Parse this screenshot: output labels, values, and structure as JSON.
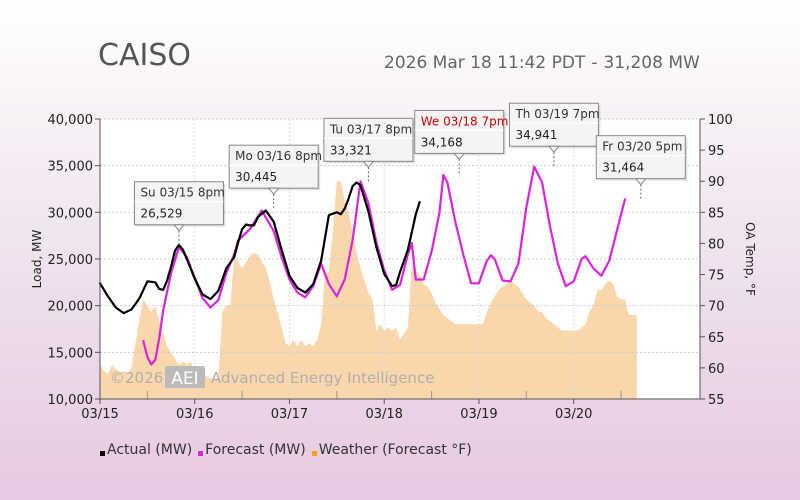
{
  "header": {
    "title": "CAISO",
    "timestamp": "2026 Mar 18 11:42 PDT",
    "separator": "-",
    "current_load": "31,208 MW"
  },
  "watermark": {
    "copyright": "©2026",
    "logo": "AEI",
    "company": "Advanced Energy Intelligence"
  },
  "chart_data": {
    "type": "line",
    "title": "",
    "xlabel": "",
    "ylabel": "Load, MW",
    "y2label": "OA Temp, °F",
    "ylim": [
      10000,
      40000
    ],
    "y2lim": [
      55,
      100
    ],
    "xlim": [
      0,
      152
    ],
    "x_unit": "hours since 2026-03-15 00:00",
    "x_ticks": [
      {
        "x": 0,
        "label": "03/15"
      },
      {
        "x": 24,
        "label": "03/16"
      },
      {
        "x": 48,
        "label": "03/17"
      },
      {
        "x": 72,
        "label": "03/18"
      },
      {
        "x": 96,
        "label": "03/19"
      },
      {
        "x": 120,
        "label": "03/20"
      }
    ],
    "y_ticks": [
      "10,000",
      "15,000",
      "20,000",
      "25,000",
      "30,000",
      "35,000",
      "40,000"
    ],
    "y_tick_values": [
      10000,
      15000,
      20000,
      25000,
      30000,
      35000,
      40000
    ],
    "y2_ticks": [
      "55",
      "60",
      "65",
      "70",
      "75",
      "80",
      "85",
      "90",
      "95",
      "100"
    ],
    "y2_tick_values": [
      55,
      60,
      65,
      70,
      75,
      80,
      85,
      90,
      95,
      100
    ],
    "grid": true,
    "legend_position": "bottom",
    "series": [
      {
        "name": "Actual (MW)",
        "color": "#000000",
        "points": [
          [
            0,
            22400
          ],
          [
            2,
            21000
          ],
          [
            4,
            19800
          ],
          [
            6,
            19200
          ],
          [
            8,
            19600
          ],
          [
            10,
            20800
          ],
          [
            11,
            21700
          ],
          [
            12,
            22600
          ],
          [
            14,
            22500
          ],
          [
            15,
            21800
          ],
          [
            16,
            21700
          ],
          [
            17,
            22700
          ],
          [
            18,
            24200
          ],
          [
            19,
            25900
          ],
          [
            20,
            26500
          ],
          [
            21,
            26000
          ],
          [
            22,
            25000
          ],
          [
            24,
            22900
          ],
          [
            26,
            21200
          ],
          [
            28,
            20700
          ],
          [
            30,
            21600
          ],
          [
            32,
            24000
          ],
          [
            34,
            25200
          ],
          [
            35,
            26800
          ],
          [
            36,
            28200
          ],
          [
            37,
            28700
          ],
          [
            38,
            28600
          ],
          [
            39,
            28600
          ],
          [
            40,
            29500
          ],
          [
            42,
            30200
          ],
          [
            44,
            29000
          ],
          [
            46,
            26000
          ],
          [
            48,
            23200
          ],
          [
            50,
            21900
          ],
          [
            52,
            21400
          ],
          [
            54,
            22300
          ],
          [
            56,
            24800
          ],
          [
            58,
            29700
          ],
          [
            60,
            30000
          ],
          [
            61,
            29800
          ],
          [
            62,
            30400
          ],
          [
            63,
            31500
          ],
          [
            64,
            32800
          ],
          [
            65,
            33200
          ],
          [
            66,
            32900
          ],
          [
            68,
            30100
          ],
          [
            70,
            26300
          ],
          [
            72,
            23400
          ],
          [
            74,
            22100
          ],
          [
            75,
            22200
          ],
          [
            76,
            23600
          ],
          [
            78,
            26000
          ],
          [
            80,
            29800
          ],
          [
            81,
            31100
          ]
        ]
      },
      {
        "name": "Forecast (MW)",
        "color": "#dd22dd",
        "points": [
          [
            11,
            16200
          ],
          [
            12,
            14500
          ],
          [
            13,
            13700
          ],
          [
            14,
            14200
          ],
          [
            15,
            16500
          ],
          [
            16,
            19500
          ],
          [
            18,
            23500
          ],
          [
            20,
            26300
          ],
          [
            22,
            25200
          ],
          [
            24,
            23000
          ],
          [
            26,
            20800
          ],
          [
            28,
            19800
          ],
          [
            30,
            20600
          ],
          [
            32,
            23500
          ],
          [
            34,
            25500
          ],
          [
            35,
            27000
          ],
          [
            38,
            28200
          ],
          [
            41,
            30200
          ],
          [
            44,
            28000
          ],
          [
            46,
            25200
          ],
          [
            48,
            22800
          ],
          [
            50,
            21400
          ],
          [
            52,
            20900
          ],
          [
            54,
            22100
          ],
          [
            56,
            24500
          ],
          [
            58,
            22300
          ],
          [
            60,
            21000
          ],
          [
            62,
            22800
          ],
          [
            64,
            27000
          ],
          [
            66,
            33300
          ],
          [
            68,
            31000
          ],
          [
            70,
            26800
          ],
          [
            72,
            23800
          ],
          [
            74,
            21700
          ],
          [
            76,
            22200
          ],
          [
            78,
            25500
          ],
          [
            79,
            26700
          ],
          [
            80,
            22800
          ],
          [
            82,
            22800
          ],
          [
            84,
            25800
          ],
          [
            86,
            30000
          ],
          [
            87,
            34000
          ],
          [
            88,
            33200
          ],
          [
            90,
            29000
          ],
          [
            92,
            25500
          ],
          [
            94,
            22400
          ],
          [
            96,
            22400
          ],
          [
            98,
            24800
          ],
          [
            99,
            25400
          ],
          [
            100,
            25000
          ],
          [
            102,
            22700
          ],
          [
            104,
            22600
          ],
          [
            106,
            24500
          ],
          [
            108,
            30500
          ],
          [
            110,
            34900
          ],
          [
            112,
            33200
          ],
          [
            114,
            28500
          ],
          [
            116,
            24500
          ],
          [
            118,
            22100
          ],
          [
            120,
            22600
          ],
          [
            122,
            25000
          ],
          [
            123,
            25300
          ],
          [
            125,
            24000
          ],
          [
            127,
            23200
          ],
          [
            129,
            24800
          ],
          [
            132,
            29800
          ],
          [
            133,
            31400
          ]
        ]
      },
      {
        "name": "Weather (Forecast °F)",
        "color": "#f6c487",
        "points": [
          [
            0,
            60.5
          ],
          [
            1,
            59.5
          ],
          [
            2,
            59.0
          ],
          [
            3,
            60.5
          ],
          [
            4,
            59.8
          ],
          [
            5,
            59.3
          ],
          [
            6,
            59.5
          ],
          [
            7,
            59.0
          ],
          [
            8,
            60.0
          ],
          [
            9,
            64.0
          ],
          [
            10,
            68.0
          ],
          [
            11,
            71.0
          ],
          [
            12,
            70.0
          ],
          [
            13,
            69.0
          ],
          [
            14,
            70.0
          ],
          [
            15,
            67.5
          ],
          [
            16,
            65.5
          ],
          [
            17,
            63.5
          ],
          [
            18,
            62.5
          ],
          [
            19,
            61.5
          ],
          [
            20,
            60.5
          ],
          [
            21,
            61.0
          ],
          [
            22,
            60.5
          ],
          [
            23,
            61.0
          ],
          [
            24,
            59.5
          ],
          [
            26,
            59.0
          ],
          [
            28,
            58.3
          ],
          [
            30,
            58.3
          ],
          [
            31,
            69.0
          ],
          [
            32,
            70.0
          ],
          [
            33,
            70.0
          ],
          [
            34,
            78.0
          ],
          [
            35,
            77.0
          ],
          [
            36,
            76.0
          ],
          [
            37,
            77.0
          ],
          [
            38,
            78.0
          ],
          [
            39,
            78.5
          ],
          [
            40,
            78.2
          ],
          [
            41,
            77.0
          ],
          [
            42,
            76.0
          ],
          [
            43,
            74.0
          ],
          [
            44,
            71.0
          ],
          [
            45,
            69.0
          ],
          [
            46,
            66.5
          ],
          [
            47,
            64.0
          ],
          [
            48,
            63.5
          ],
          [
            49,
            64.5
          ],
          [
            50,
            63.5
          ],
          [
            51,
            64.5
          ],
          [
            52,
            63.5
          ],
          [
            53,
            64.0
          ],
          [
            54,
            63.5
          ],
          [
            55,
            64.5
          ],
          [
            56,
            67.0
          ],
          [
            57,
            75.0
          ],
          [
            58,
            75.5
          ],
          [
            59,
            82.0
          ],
          [
            60,
            90.0
          ],
          [
            61,
            90.0
          ],
          [
            62,
            87.0
          ],
          [
            63,
            85.0
          ],
          [
            64,
            82.0
          ],
          [
            65,
            78.5
          ],
          [
            66,
            76.0
          ],
          [
            67,
            74.0
          ],
          [
            68,
            72.0
          ],
          [
            69,
            71.0
          ],
          [
            70,
            66.0
          ],
          [
            71,
            67.0
          ],
          [
            72,
            66.0
          ],
          [
            73,
            66.5
          ],
          [
            74,
            66.0
          ],
          [
            75,
            66.5
          ],
          [
            76,
            64.5
          ],
          [
            77,
            65.5
          ],
          [
            78,
            66.5
          ],
          [
            79,
            76.5
          ],
          [
            80,
            75.5
          ],
          [
            81,
            75.0
          ],
          [
            82,
            73.5
          ],
          [
            83,
            73.0
          ],
          [
            84,
            72.0
          ],
          [
            85,
            70.5
          ],
          [
            86,
            69.5
          ],
          [
            87,
            68.5
          ],
          [
            88,
            68.0
          ],
          [
            89,
            67.5
          ],
          [
            90,
            67.0
          ],
          [
            91,
            67.0
          ],
          [
            92,
            67.0
          ],
          [
            93,
            67.0
          ],
          [
            94,
            67.0
          ],
          [
            95,
            67.0
          ],
          [
            96,
            67.0
          ],
          [
            97,
            67.0
          ],
          [
            98,
            69.0
          ],
          [
            99,
            70.5
          ],
          [
            100,
            71.5
          ],
          [
            101,
            72.5
          ],
          [
            102,
            73.0
          ],
          [
            103,
            73.5
          ],
          [
            104,
            74.0
          ],
          [
            105,
            73.5
          ],
          [
            106,
            73.0
          ],
          [
            107,
            72.0
          ],
          [
            108,
            71.0
          ],
          [
            109,
            70.5
          ],
          [
            110,
            70.0
          ],
          [
            111,
            69.0
          ],
          [
            112,
            69.0
          ],
          [
            113,
            68.0
          ],
          [
            114,
            67.5
          ],
          [
            115,
            67.0
          ],
          [
            116,
            66.5
          ],
          [
            117,
            66.0
          ],
          [
            118,
            66.0
          ],
          [
            119,
            66.0
          ],
          [
            120,
            66.0
          ],
          [
            121,
            66.0
          ],
          [
            122,
            66.5
          ],
          [
            123,
            67.0
          ],
          [
            124,
            69.0
          ],
          [
            125,
            70.0
          ],
          [
            126,
            72.5
          ],
          [
            127,
            72.5
          ],
          [
            128,
            73.5
          ],
          [
            129,
            74.0
          ],
          [
            130,
            73.5
          ],
          [
            131,
            71.5
          ],
          [
            132,
            71.0
          ],
          [
            133,
            71.0
          ],
          [
            134,
            68.5
          ],
          [
            135,
            68.5
          ],
          [
            136,
            68.5
          ]
        ]
      }
    ],
    "annotations": [
      {
        "day": "Su 03/15 8pm",
        "value": "26,529",
        "x": 20,
        "y": 26529,
        "highlight": false
      },
      {
        "day": "Mo 03/16 8pm",
        "value": "30,445",
        "x": 44,
        "y": 30445,
        "highlight": false
      },
      {
        "day": "Tu 03/17 8pm",
        "value": "33,321",
        "x": 68,
        "y": 33321,
        "highlight": false
      },
      {
        "day": "We 03/18 7pm",
        "value": "34,168",
        "x": 91,
        "y": 34168,
        "highlight": true
      },
      {
        "day": "Th 03/19 7pm",
        "value": "34,941",
        "x": 115,
        "y": 34941,
        "highlight": false
      },
      {
        "day": "Fr 03/20 5pm",
        "value": "31,464",
        "x": 137,
        "y": 31464,
        "highlight": false
      }
    ]
  },
  "legend": {
    "actual": "Actual (MW)",
    "forecast": "Forecast (MW)",
    "weather": "Weather (Forecast °F)",
    "actual_color": "#000000",
    "forecast_color": "#dd22dd",
    "weather_color": "#f6a21e"
  },
  "colors": {
    "highlight_text": "#cc0000"
  }
}
